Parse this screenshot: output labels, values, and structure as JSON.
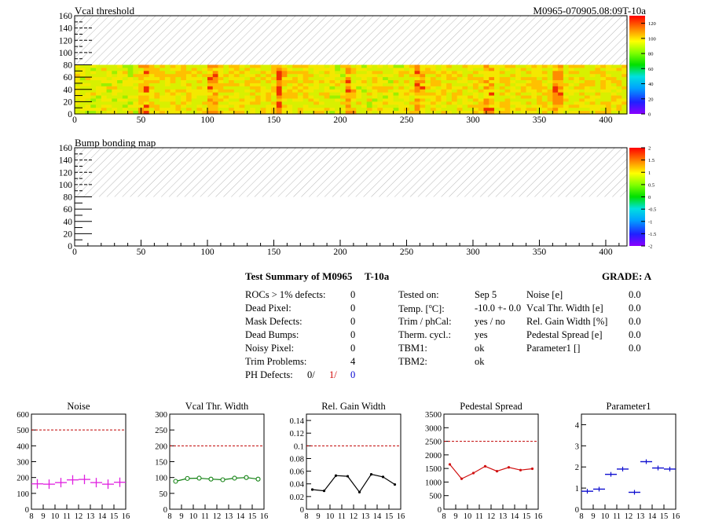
{
  "header": {
    "module_id": "M0965-070905.08:09T-10a"
  },
  "colors": {
    "axis": "#000000",
    "hatch": "#b8b8b8",
    "noise": "#e020e0",
    "vcal_width": "#108010",
    "gain": "#000000",
    "pedestal": "#d01010",
    "parameter": "#1010d0",
    "limit_line": "#c00000",
    "ph_red": "#d00000",
    "ph_blue": "#0000d0"
  },
  "chart_data": [
    {
      "type": "heatmap",
      "title": "Vcal threshold",
      "x_ticks": [
        "0",
        "50",
        "100",
        "150",
        "200",
        "250",
        "300",
        "350",
        "400"
      ],
      "y_ticks": [
        "0",
        "20",
        "40",
        "60",
        "80",
        "100",
        "120",
        "140",
        "160"
      ],
      "xlim": [
        0,
        416
      ],
      "ylim": [
        0,
        160
      ],
      "filled_rows": [
        0,
        80
      ],
      "colorbar": {
        "range": [
          0,
          130
        ],
        "ticks": [
          "0",
          "20",
          "40",
          "60",
          "80",
          "100",
          "120"
        ]
      },
      "hot_columns": [
        52,
        104,
        155,
        207,
        260,
        312,
        364
      ]
    },
    {
      "type": "heatmap",
      "title": "Bump bonding map",
      "x_ticks": [
        "0",
        "50",
        "100",
        "150",
        "200",
        "250",
        "300",
        "350",
        "400"
      ],
      "y_ticks": [
        "0",
        "20",
        "40",
        "60",
        "80",
        "100",
        "120",
        "140",
        "160"
      ],
      "xlim": [
        0,
        416
      ],
      "ylim": [
        0,
        160
      ],
      "filled_rows": [
        0,
        80
      ],
      "colorbar": {
        "range": [
          -2,
          2
        ],
        "ticks": [
          "-2",
          "-1.5",
          "-1",
          "-0.5",
          "0",
          "0.5",
          "1",
          "1.5",
          "2"
        ]
      }
    },
    {
      "type": "line",
      "title": "Noise",
      "xlim": [
        8,
        16
      ],
      "ylim": [
        0,
        600
      ],
      "x_ticks": [
        "8",
        "9",
        "10",
        "11",
        "12",
        "13",
        "14",
        "15",
        "16"
      ],
      "y_ticks": [
        "0",
        "100",
        "200",
        "300",
        "400",
        "500",
        "600"
      ],
      "limit": 500,
      "marker": "cross",
      "connect": false,
      "x": [
        8.5,
        9.5,
        10.5,
        11.5,
        12.5,
        13.5,
        14.5,
        15.5
      ],
      "values": [
        160,
        158,
        168,
        185,
        188,
        168,
        158,
        170
      ]
    },
    {
      "type": "line",
      "title": "Vcal Thr. Width",
      "xlim": [
        8,
        16
      ],
      "ylim": [
        0,
        300
      ],
      "x_ticks": [
        "8",
        "9",
        "10",
        "11",
        "12",
        "13",
        "14",
        "15",
        "16"
      ],
      "y_ticks": [
        "0",
        "50",
        "100",
        "150",
        "200",
        "250",
        "300"
      ],
      "limit": 200,
      "marker": "circle",
      "connect": true,
      "x": [
        8.5,
        9.5,
        10.5,
        11.5,
        12.5,
        13.5,
        14.5,
        15.5
      ],
      "values": [
        88,
        97,
        98,
        95,
        93,
        98,
        100,
        95
      ]
    },
    {
      "type": "line",
      "title": "Rel. Gain Width",
      "xlim": [
        8,
        16
      ],
      "ylim": [
        0,
        0.15
      ],
      "x_ticks": [
        "8",
        "9",
        "10",
        "11",
        "12",
        "13",
        "14",
        "15",
        "16"
      ],
      "y_ticks": [
        "0",
        "0.02",
        "0.04",
        "0.06",
        "0.08",
        "0.1",
        "0.12",
        "0.14"
      ],
      "limit": 0.1,
      "marker": "dot",
      "connect": true,
      "x": [
        8.5,
        9.5,
        10.5,
        11.5,
        12.5,
        13.5,
        14.5,
        15.5
      ],
      "values": [
        0.031,
        0.029,
        0.053,
        0.052,
        0.027,
        0.055,
        0.051,
        0.039
      ]
    },
    {
      "type": "line",
      "title": "Pedestal Spread",
      "xlim": [
        8,
        16
      ],
      "ylim": [
        0,
        3500
      ],
      "x_ticks": [
        "8",
        "9",
        "10",
        "11",
        "12",
        "13",
        "14",
        "15",
        "16"
      ],
      "y_ticks": [
        "0",
        "500",
        "1000",
        "1500",
        "2000",
        "2500",
        "3000",
        "3500"
      ],
      "limit": 2500,
      "marker": "dot",
      "connect": true,
      "x": [
        8.5,
        9.5,
        10.5,
        11.5,
        12.5,
        13.5,
        14.5,
        15.5
      ],
      "values": [
        1650,
        1120,
        1330,
        1580,
        1400,
        1540,
        1440,
        1490
      ]
    },
    {
      "type": "line",
      "title": "Parameter1",
      "xlim": [
        8,
        16
      ],
      "ylim": [
        0,
        4.5
      ],
      "x_ticks": [
        "8",
        "9",
        "10",
        "11",
        "12",
        "13",
        "14",
        "15",
        "16"
      ],
      "y_ticks": [
        "0",
        "1",
        "2",
        "3",
        "4"
      ],
      "limit": null,
      "marker": "hbar",
      "connect": false,
      "x": [
        8.5,
        9.5,
        10.5,
        11.5,
        12.5,
        13.5,
        14.5,
        15.5
      ],
      "values": [
        0.85,
        0.95,
        1.65,
        1.9,
        0.8,
        2.25,
        1.95,
        1.9
      ]
    }
  ],
  "summary": {
    "title": "Test Summary of M0965",
    "test_id": "T-10a",
    "grade": "GRADE:  A",
    "defects": [
      {
        "label": "ROCs > 1% defects:",
        "value": "0"
      },
      {
        "label": "Dead Pixel:",
        "value": "0"
      },
      {
        "label": "Mask Defects:",
        "value": "0"
      },
      {
        "label": "Dead Bumps:",
        "value": "0"
      },
      {
        "label": "Noisy Pixel:",
        "value": "0"
      },
      {
        "label": "Trim Problems:",
        "value": "4"
      }
    ],
    "ph_defects": {
      "label": "PH Defects:",
      "v1": "0/",
      "v2": "1/",
      "v3": "0"
    },
    "conditions": [
      {
        "label": "Tested on:",
        "value": "Sep 5"
      },
      {
        "label": "Temp. [",
        "sup": "o",
        "label_end": "C]:",
        "value": "-10.0 +- 0.0"
      },
      {
        "label": "Trim / phCal:",
        "value": "yes / no"
      },
      {
        "label": "Therm. cycl.:",
        "value": "yes"
      },
      {
        "label": "TBM1:",
        "value": "ok"
      },
      {
        "label": "TBM2:",
        "value": "ok"
      }
    ],
    "widths": [
      {
        "label": "Noise [e]",
        "value": "0.0"
      },
      {
        "label": "Vcal Thr. Width [e]",
        "value": "0.0"
      },
      {
        "label": "Rel. Gain Width [%]",
        "value": "0.0"
      },
      {
        "label": "Pedestal Spread [e]",
        "value": "0.0"
      },
      {
        "label": "Parameter1 []",
        "value": "0.0"
      }
    ]
  }
}
